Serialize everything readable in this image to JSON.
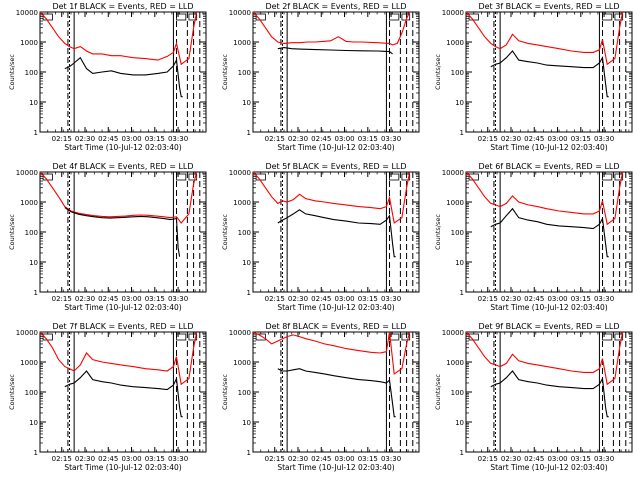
{
  "chart_data": [
    {
      "type": "line",
      "title": "Det 1f BLACK = Events, RED = LLD",
      "xlabel": "Start Time (10-Jul-12 02:03:40)",
      "ylabel": "Counts/sec",
      "yscale": "log",
      "ylim": [
        1,
        10000
      ],
      "xlim": [
        0,
        107
      ],
      "x_ticks": [
        "02:15",
        "02:30",
        "02:45",
        "03:00",
        "03:15",
        "03:30"
      ],
      "y_ticks": [
        "1",
        "10",
        "100",
        "1000",
        "10000"
      ],
      "series": [
        {
          "color": "#ff0000",
          "x": [
            0,
            4,
            8,
            12,
            16,
            19,
            22,
            26,
            30,
            34,
            40,
            46,
            52,
            60,
            68,
            76,
            82,
            86,
            88,
            91,
            96,
            99,
            101
          ],
          "y": [
            10000,
            6000,
            3000,
            1500,
            900,
            700,
            600,
            700,
            500,
            400,
            400,
            350,
            350,
            300,
            280,
            250,
            330,
            450,
            900,
            180,
            280,
            3000,
            10000
          ]
        },
        {
          "color": "#000000",
          "x": [
            16,
            19,
            22,
            26,
            30,
            34,
            40,
            46,
            52,
            60,
            68,
            76,
            82,
            86,
            88,
            90,
            91,
            92
          ],
          "y": [
            130,
            150,
            200,
            300,
            130,
            90,
            100,
            110,
            90,
            80,
            80,
            90,
            100,
            160,
            250,
            30,
            15,
            15
          ]
        }
      ]
    },
    {
      "type": "line",
      "title": "Det 2f BLACK = Events, RED = LLD",
      "xlabel": "Start Time (10-Jul-12 02:03:40)",
      "ylabel": "Counts/sec",
      "yscale": "log",
      "ylim": [
        1,
        10000
      ],
      "xlim": [
        0,
        107
      ],
      "x_ticks": [
        "02:15",
        "02:30",
        "02:45",
        "03:00",
        "03:15",
        "03:30"
      ],
      "y_ticks": [
        "1",
        "10",
        "100",
        "1000",
        "10000"
      ],
      "series": [
        {
          "color": "#ff0000",
          "x": [
            0,
            4,
            8,
            12,
            16,
            20,
            25,
            30,
            35,
            40,
            45,
            50,
            55,
            60,
            65,
            70,
            80,
            88,
            90,
            93,
            96,
            99,
            101
          ],
          "y": [
            10000,
            6000,
            3000,
            1500,
            1000,
            900,
            950,
            950,
            1000,
            1000,
            1050,
            1100,
            1500,
            1050,
            1000,
            1000,
            950,
            900,
            800,
            900,
            2000,
            6000,
            10000
          ]
        },
        {
          "color": "#000000",
          "x": [
            16,
            20,
            25,
            30,
            40,
            50,
            60,
            70,
            80,
            88,
            90
          ],
          "y": [
            600,
            650,
            600,
            580,
            560,
            540,
            520,
            510,
            500,
            480,
            400
          ]
        }
      ]
    },
    {
      "type": "line",
      "title": "Det 3f BLACK = Events, RED = LLD",
      "xlabel": "Start Time (10-Jul-12 02:03:40)",
      "ylabel": "Counts/sec",
      "yscale": "log",
      "ylim": [
        1,
        10000
      ],
      "xlim": [
        0,
        107
      ],
      "x_ticks": [
        "02:15",
        "02:30",
        "02:45",
        "03:00",
        "03:15",
        "03:30"
      ],
      "y_ticks": [
        "1",
        "10",
        "100",
        "1000",
        "10000"
      ],
      "series": [
        {
          "color": "#ff0000",
          "x": [
            0,
            4,
            8,
            12,
            16,
            19,
            22,
            26,
            30,
            34,
            40,
            46,
            52,
            60,
            68,
            76,
            82,
            86,
            88,
            91,
            96,
            99,
            101
          ],
          "y": [
            10000,
            6000,
            3000,
            1500,
            900,
            700,
            600,
            800,
            1800,
            1100,
            900,
            800,
            700,
            600,
            500,
            450,
            450,
            550,
            1200,
            180,
            280,
            3000,
            10000
          ]
        },
        {
          "color": "#000000",
          "x": [
            16,
            19,
            22,
            26,
            30,
            34,
            40,
            46,
            52,
            60,
            68,
            76,
            82,
            86,
            88,
            90,
            91,
            92
          ],
          "y": [
            150,
            180,
            200,
            300,
            500,
            250,
            220,
            200,
            170,
            160,
            150,
            140,
            140,
            200,
            300,
            40,
            15,
            15
          ]
        }
      ]
    },
    {
      "type": "line",
      "title": "Det 4f BLACK = Events, RED = LLD",
      "xlabel": "Start Time (10-Jul-12 02:03:40)",
      "ylabel": "Counts/sec",
      "yscale": "log",
      "ylim": [
        1,
        10000
      ],
      "xlim": [
        0,
        107
      ],
      "x_ticks": [
        "02:15",
        "02:30",
        "02:45",
        "03:00",
        "03:15",
        "03:30"
      ],
      "y_ticks": [
        "1",
        "10",
        "100",
        "1000",
        "10000"
      ],
      "series": [
        {
          "color": "#ff0000",
          "x": [
            0,
            4,
            8,
            12,
            16,
            20,
            25,
            30,
            35,
            40,
            45,
            50,
            55,
            60,
            65,
            70,
            75,
            80,
            84,
            88,
            91,
            96,
            99,
            101
          ],
          "y": [
            10000,
            6000,
            3000,
            1500,
            700,
            500,
            420,
            380,
            350,
            330,
            320,
            330,
            340,
            360,
            370,
            360,
            340,
            320,
            300,
            320,
            200,
            400,
            4000,
            10000
          ]
        },
        {
          "color": "#000000",
          "x": [
            16,
            20,
            25,
            30,
            35,
            40,
            45,
            50,
            55,
            60,
            65,
            70,
            75,
            80,
            84,
            88,
            89,
            90
          ],
          "y": [
            650,
            470,
            390,
            350,
            320,
            300,
            290,
            300,
            310,
            320,
            330,
            320,
            300,
            280,
            260,
            280,
            30,
            15
          ]
        }
      ]
    },
    {
      "type": "line",
      "title": "Det 5f BLACK = Events, RED = LLD",
      "xlabel": "Start Time (10-Jul-12 02:03:40)",
      "ylabel": "Counts/sec",
      "yscale": "log",
      "ylim": [
        1,
        10000
      ],
      "xlim": [
        0,
        107
      ],
      "x_ticks": [
        "02:15",
        "02:30",
        "02:45",
        "03:00",
        "03:15",
        "03:30"
      ],
      "y_ticks": [
        "1",
        "10",
        "100",
        "1000",
        "10000"
      ],
      "series": [
        {
          "color": "#ff0000",
          "x": [
            0,
            4,
            8,
            12,
            16,
            19,
            22,
            26,
            30,
            34,
            40,
            46,
            52,
            60,
            68,
            76,
            82,
            86,
            88,
            91,
            96,
            99,
            101
          ],
          "y": [
            10000,
            6000,
            3000,
            1500,
            900,
            1100,
            1000,
            1200,
            1800,
            1300,
            1100,
            1000,
            900,
            800,
            700,
            650,
            600,
            700,
            1400,
            200,
            300,
            3000,
            10000
          ]
        },
        {
          "color": "#000000",
          "x": [
            16,
            19,
            22,
            26,
            30,
            34,
            40,
            46,
            52,
            60,
            68,
            76,
            82,
            86,
            88,
            90,
            91,
            92
          ],
          "y": [
            200,
            250,
            300,
            400,
            550,
            400,
            350,
            300,
            260,
            230,
            200,
            190,
            180,
            250,
            350,
            40,
            15,
            15
          ]
        }
      ]
    },
    {
      "type": "line",
      "title": "Det 6f BLACK = Events, RED = LLD",
      "xlabel": "Start Time (10-Jul-12 02:03:40)",
      "ylabel": "Counts/sec",
      "yscale": "log",
      "ylim": [
        1,
        10000
      ],
      "xlim": [
        0,
        107
      ],
      "x_ticks": [
        "02:15",
        "02:30",
        "02:45",
        "03:00",
        "03:15",
        "03:30"
      ],
      "y_ticks": [
        "1",
        "10",
        "100",
        "1000",
        "10000"
      ],
      "series": [
        {
          "color": "#ff0000",
          "x": [
            0,
            4,
            8,
            12,
            16,
            19,
            22,
            26,
            30,
            34,
            40,
            46,
            52,
            60,
            68,
            76,
            82,
            86,
            88,
            91,
            96,
            99,
            101
          ],
          "y": [
            10000,
            6000,
            3000,
            1500,
            900,
            800,
            700,
            900,
            1600,
            1000,
            800,
            700,
            600,
            500,
            450,
            400,
            400,
            500,
            1100,
            180,
            280,
            3000,
            10000
          ]
        },
        {
          "color": "#000000",
          "x": [
            16,
            19,
            22,
            26,
            30,
            34,
            40,
            46,
            52,
            60,
            68,
            76,
            82,
            86,
            88,
            90,
            91,
            92
          ],
          "y": [
            150,
            180,
            200,
            350,
            600,
            300,
            250,
            220,
            180,
            160,
            150,
            140,
            130,
            180,
            280,
            40,
            15,
            15
          ]
        }
      ]
    },
    {
      "type": "line",
      "title": "Det 7f BLACK = Events, RED = LLD",
      "xlabel": "Start Time (10-Jul-12 02:03:40)",
      "ylabel": "Counts/sec",
      "yscale": "log",
      "ylim": [
        1,
        10000
      ],
      "xlim": [
        0,
        107
      ],
      "x_ticks": [
        "02:15",
        "02:30",
        "02:45",
        "03:00",
        "03:15",
        "03:30"
      ],
      "y_ticks": [
        "1",
        "10",
        "100",
        "1000",
        "10000"
      ],
      "series": [
        {
          "color": "#ff0000",
          "x": [
            0,
            4,
            8,
            12,
            16,
            19,
            22,
            26,
            30,
            34,
            40,
            46,
            52,
            60,
            68,
            76,
            82,
            86,
            88,
            91,
            96,
            99,
            101
          ],
          "y": [
            10000,
            6000,
            3000,
            1200,
            700,
            600,
            500,
            800,
            2000,
            1200,
            1000,
            900,
            800,
            700,
            600,
            550,
            500,
            700,
            1500,
            180,
            280,
            3000,
            10000
          ]
        },
        {
          "color": "#000000",
          "x": [
            16,
            19,
            22,
            26,
            30,
            34,
            40,
            46,
            52,
            60,
            68,
            76,
            82,
            86,
            88,
            90,
            91,
            92
          ],
          "y": [
            150,
            180,
            200,
            300,
            500,
            260,
            220,
            200,
            170,
            150,
            140,
            130,
            120,
            170,
            280,
            30,
            15,
            15
          ]
        }
      ]
    },
    {
      "type": "line",
      "title": "Det 8f BLACK = Events, RED = LLD",
      "xlabel": "Start Time (10-Jul-12 02:03:40)",
      "ylabel": "Counts/sec",
      "yscale": "log",
      "ylim": [
        1,
        10000
      ],
      "xlim": [
        0,
        107
      ],
      "x_ticks": [
        "02:15",
        "02:30",
        "02:45",
        "03:00",
        "03:15",
        "03:30"
      ],
      "y_ticks": [
        "1",
        "10",
        "100",
        "1000",
        "10000"
      ],
      "series": [
        {
          "color": "#ff0000",
          "x": [
            0,
            4,
            8,
            12,
            16,
            19,
            22,
            26,
            30,
            34,
            40,
            46,
            52,
            60,
            68,
            76,
            82,
            86,
            88,
            91,
            96,
            99,
            101
          ],
          "y": [
            10000,
            8000,
            6000,
            4000,
            5000,
            6000,
            7000,
            8000,
            7000,
            6000,
            5000,
            4000,
            3500,
            2800,
            2400,
            2100,
            2000,
            2200,
            10000,
            400,
            600,
            4000,
            10000
          ]
        },
        {
          "color": "#000000",
          "x": [
            16,
            19,
            22,
            26,
            30,
            34,
            40,
            46,
            52,
            60,
            68,
            76,
            82,
            86,
            88,
            90,
            91,
            92
          ],
          "y": [
            600,
            500,
            500,
            550,
            600,
            500,
            450,
            400,
            350,
            300,
            260,
            240,
            220,
            200,
            250,
            40,
            15,
            15
          ]
        }
      ]
    },
    {
      "type": "line",
      "title": "Det 9f BLACK = Events, RED = LLD",
      "xlabel": "Start Time (10-Jul-12 02:03:40)",
      "ylabel": "Counts/sec",
      "yscale": "log",
      "ylim": [
        1,
        10000
      ],
      "xlim": [
        0,
        107
      ],
      "x_ticks": [
        "02:15",
        "02:30",
        "02:45",
        "03:00",
        "03:15",
        "03:30"
      ],
      "y_ticks": [
        "1",
        "10",
        "100",
        "1000",
        "10000"
      ],
      "series": [
        {
          "color": "#ff0000",
          "x": [
            0,
            4,
            8,
            12,
            16,
            19,
            22,
            26,
            30,
            34,
            40,
            46,
            52,
            60,
            68,
            76,
            82,
            86,
            88,
            91,
            96,
            99,
            101
          ],
          "y": [
            10000,
            6000,
            3000,
            1500,
            900,
            800,
            700,
            900,
            1800,
            1100,
            900,
            800,
            700,
            600,
            500,
            450,
            450,
            600,
            1300,
            180,
            280,
            3000,
            10000
          ]
        },
        {
          "color": "#000000",
          "x": [
            16,
            19,
            22,
            26,
            30,
            34,
            40,
            46,
            52,
            60,
            68,
            76,
            82,
            86,
            88,
            90,
            91,
            92
          ],
          "y": [
            150,
            180,
            200,
            300,
            500,
            260,
            220,
            200,
            170,
            150,
            140,
            130,
            130,
            180,
            280,
            30,
            15,
            15
          ]
        }
      ]
    }
  ]
}
